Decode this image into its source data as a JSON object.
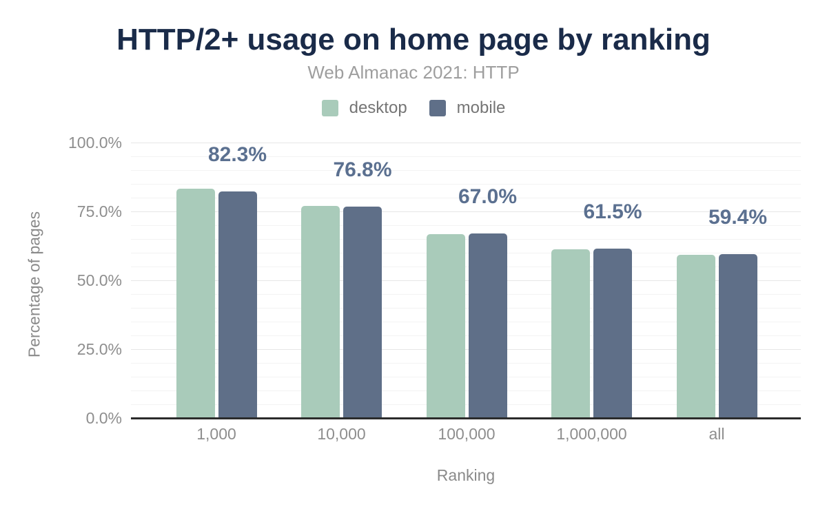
{
  "title": "HTTP/2+ usage on home page by ranking",
  "subtitle": "Web Almanac 2021: HTTP",
  "legend": {
    "items": [
      {
        "label": "desktop",
        "color": "#a9cbba"
      },
      {
        "label": "mobile",
        "color": "#5f6f88"
      }
    ]
  },
  "chart_data": {
    "type": "bar",
    "title": "HTTP/2+ usage on home page by ranking",
    "subtitle": "Web Almanac 2021: HTTP",
    "categories": [
      "1,000",
      "10,000",
      "100,000",
      "1,000,000",
      "all"
    ],
    "series": [
      {
        "name": "desktop",
        "color": "#a9cbba",
        "values": [
          83.3,
          76.9,
          66.7,
          61.2,
          59.2
        ]
      },
      {
        "name": "mobile",
        "color": "#5f6f88",
        "values": [
          82.3,
          76.8,
          67.0,
          61.5,
          59.4
        ]
      }
    ],
    "annotations": {
      "labels": [
        "82.3%",
        "76.8%",
        "67.0%",
        "61.5%",
        "59.4%"
      ],
      "attached_to_series": "mobile",
      "color": "#5b7090"
    },
    "xlabel": "Ranking",
    "ylabel": "Percentage of pages",
    "ylim": [
      0,
      100
    ],
    "yticks": {
      "values": [
        0,
        25,
        50,
        75,
        100
      ],
      "labels": [
        "0.0%",
        "25.0%",
        "50.0%",
        "75.0%",
        "100.0%"
      ]
    },
    "grid": {
      "major_step_pct": 25,
      "minor_step_pct": 5,
      "major_on": true,
      "minor_on": true
    },
    "legend_position": "top"
  },
  "colors": {
    "background": "#ffffff",
    "title_text": "#1a2b49",
    "subtitle_text": "#9e9e9e",
    "legend_text": "#757575",
    "axis_tick_text": "#8e8e8e",
    "axis_title_text": "#8a8a8a",
    "annotation_text": "#5b7090",
    "gridline_major": "#e6e6e6",
    "gridline_minor": "#f3f3f3",
    "axis_line": "#2b2b2b"
  }
}
